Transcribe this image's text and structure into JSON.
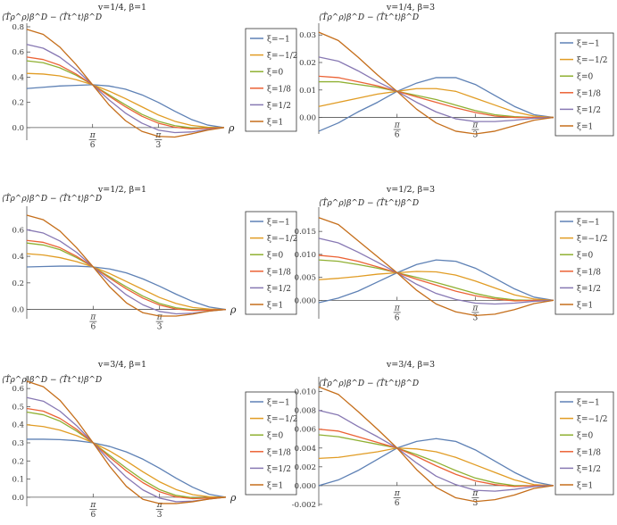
{
  "figure": {
    "ylabel_text": "⟨T̂ρ^ρ⟩β^D − ⟨T̂t^t⟩β^D",
    "xlabel": "ρ",
    "xtick_labels": [
      {
        "num": "π",
        "den": "6",
        "value": 0.5236
      },
      {
        "num": "π",
        "den": "3",
        "value": 1.0472
      }
    ],
    "legend_labels": [
      "ξ=−1",
      "ξ=−1/2",
      "ξ=0",
      "ξ=1/8",
      "ξ=1/2",
      "ξ=1"
    ],
    "colors": [
      "#5e81b5",
      "#e19c24",
      "#8fb032",
      "#eb6235",
      "#8778b3",
      "#c56e1a"
    ]
  },
  "chart_data": [
    {
      "type": "line",
      "title": "v=1/4,  β=1",
      "xlabel": "ρ",
      "xlim": [
        0,
        1.5708
      ],
      "ylim": [
        -0.1,
        0.8
      ],
      "yticks": [
        "0.0",
        "0.2",
        "0.4",
        "0.6",
        "0.8"
      ],
      "ytick_values": [
        0,
        0.2,
        0.4,
        0.6,
        0.8
      ],
      "x": [
        0,
        0.1309,
        0.2618,
        0.3927,
        0.5236,
        0.6545,
        0.7854,
        0.9163,
        1.0472,
        1.1781,
        1.309,
        1.4399,
        1.5708
      ],
      "series": [
        {
          "name": "ξ=−1",
          "values": [
            0.31,
            0.32,
            0.33,
            0.335,
            0.34,
            0.33,
            0.305,
            0.26,
            0.2,
            0.13,
            0.065,
            0.02,
            0
          ]
        },
        {
          "name": "ξ=−1/2",
          "values": [
            0.43,
            0.425,
            0.41,
            0.38,
            0.34,
            0.29,
            0.23,
            0.165,
            0.1,
            0.05,
            0.018,
            0.003,
            0
          ]
        },
        {
          "name": "ξ=0",
          "values": [
            0.53,
            0.515,
            0.475,
            0.415,
            0.34,
            0.26,
            0.18,
            0.105,
            0.05,
            0.015,
            -0.002,
            -0.003,
            0
          ]
        },
        {
          "name": "ξ=1/8",
          "values": [
            0.56,
            0.54,
            0.495,
            0.425,
            0.34,
            0.25,
            0.165,
            0.09,
            0.035,
            0.003,
            -0.01,
            -0.006,
            0
          ]
        },
        {
          "name": "ξ=1/2",
          "values": [
            0.66,
            0.63,
            0.56,
            0.46,
            0.34,
            0.22,
            0.115,
            0.035,
            -0.02,
            -0.04,
            -0.035,
            -0.015,
            0
          ]
        },
        {
          "name": "ξ=1",
          "values": [
            0.78,
            0.74,
            0.64,
            0.5,
            0.34,
            0.18,
            0.055,
            -0.03,
            -0.07,
            -0.075,
            -0.05,
            -0.02,
            0
          ]
        }
      ]
    },
    {
      "type": "line",
      "title": "v=1/4,  β=3",
      "xlabel": "ρ",
      "xlim": [
        0,
        1.5708
      ],
      "ylim": [
        -0.006,
        0.033
      ],
      "yticks": [
        "0.00",
        "0.01",
        "0.02",
        "0.03"
      ],
      "ytick_values": [
        0,
        0.01,
        0.02,
        0.03
      ],
      "x": [
        0,
        0.1309,
        0.2618,
        0.3927,
        0.5236,
        0.6545,
        0.7854,
        0.9163,
        1.0472,
        1.1781,
        1.309,
        1.4399,
        1.5708
      ],
      "series": [
        {
          "name": "ξ=−1",
          "values": [
            -0.005,
            -0.002,
            0.002,
            0.0055,
            0.0095,
            0.0125,
            0.0145,
            0.0145,
            0.012,
            0.008,
            0.004,
            0.001,
            0
          ]
        },
        {
          "name": "ξ=−1/2",
          "values": [
            0.004,
            0.0055,
            0.007,
            0.0085,
            0.0095,
            0.0105,
            0.0105,
            0.0095,
            0.007,
            0.0045,
            0.002,
            0.0005,
            0
          ]
        },
        {
          "name": "ξ=0",
          "values": [
            0.013,
            0.013,
            0.012,
            0.011,
            0.0095,
            0.008,
            0.0065,
            0.0045,
            0.0025,
            0.001,
            0.0003,
            0,
            0
          ]
        },
        {
          "name": "ξ=1/8",
          "values": [
            0.015,
            0.0145,
            0.013,
            0.0115,
            0.0095,
            0.0075,
            0.0055,
            0.0035,
            0.0018,
            0.0005,
            0,
            0,
            0
          ]
        },
        {
          "name": "ξ=1/2",
          "values": [
            0.022,
            0.0205,
            0.017,
            0.013,
            0.0095,
            0.0055,
            0.002,
            -0.0005,
            -0.0015,
            -0.0015,
            -0.001,
            -0.0003,
            0
          ]
        },
        {
          "name": "ξ=1",
          "values": [
            0.031,
            0.028,
            0.022,
            0.0155,
            0.0095,
            0.003,
            -0.002,
            -0.005,
            -0.006,
            -0.005,
            -0.003,
            -0.001,
            0
          ]
        }
      ]
    },
    {
      "type": "line",
      "title": "v=1/2,  β=1",
      "xlabel": "ρ",
      "xlim": [
        0,
        1.5708
      ],
      "ylim": [
        -0.07,
        0.75
      ],
      "yticks": [
        "0.0",
        "0.2",
        "0.4",
        "0.6"
      ],
      "ytick_values": [
        0,
        0.2,
        0.4,
        0.6
      ],
      "x": [
        0,
        0.1309,
        0.2618,
        0.3927,
        0.5236,
        0.6545,
        0.7854,
        0.9163,
        1.0472,
        1.1781,
        1.309,
        1.4399,
        1.5708
      ],
      "series": [
        {
          "name": "ξ=−1",
          "values": [
            0.32,
            0.323,
            0.326,
            0.326,
            0.32,
            0.305,
            0.275,
            0.23,
            0.175,
            0.115,
            0.06,
            0.018,
            0
          ]
        },
        {
          "name": "ξ=−1/2",
          "values": [
            0.42,
            0.41,
            0.39,
            0.36,
            0.32,
            0.27,
            0.21,
            0.15,
            0.09,
            0.045,
            0.015,
            0.003,
            0
          ]
        },
        {
          "name": "ξ=0",
          "values": [
            0.5,
            0.485,
            0.45,
            0.39,
            0.32,
            0.245,
            0.17,
            0.1,
            0.045,
            0.012,
            -0.002,
            -0.003,
            0
          ]
        },
        {
          "name": "ξ=1/8",
          "values": [
            0.52,
            0.505,
            0.465,
            0.4,
            0.32,
            0.235,
            0.155,
            0.085,
            0.033,
            0.003,
            -0.008,
            -0.005,
            0
          ]
        },
        {
          "name": "ξ=1/2",
          "values": [
            0.6,
            0.575,
            0.515,
            0.43,
            0.32,
            0.21,
            0.11,
            0.035,
            -0.015,
            -0.033,
            -0.028,
            -0.012,
            0
          ]
        },
        {
          "name": "ξ=1",
          "values": [
            0.71,
            0.675,
            0.59,
            0.465,
            0.32,
            0.17,
            0.05,
            -0.025,
            -0.05,
            -0.05,
            -0.035,
            -0.012,
            0
          ]
        }
      ]
    },
    {
      "type": "line",
      "title": "v=1/2,  β=3",
      "xlabel": "ρ",
      "xlim": [
        0,
        1.5708
      ],
      "ylim": [
        -0.004,
        0.0195
      ],
      "yticks": [
        "0.000",
        "0.005",
        "0.010",
        "0.015"
      ],
      "ytick_values": [
        0,
        0.005,
        0.01,
        0.015
      ],
      "x": [
        0,
        0.1309,
        0.2618,
        0.3927,
        0.5236,
        0.6545,
        0.7854,
        0.9163,
        1.0472,
        1.1781,
        1.309,
        1.4399,
        1.5708
      ],
      "series": [
        {
          "name": "ξ=−1",
          "values": [
            -0.0005,
            0.0005,
            0.002,
            0.004,
            0.006,
            0.0078,
            0.0088,
            0.0085,
            0.007,
            0.0048,
            0.0025,
            0.0007,
            0
          ]
        },
        {
          "name": "ξ=−1/2",
          "values": [
            0.0045,
            0.0048,
            0.0052,
            0.0057,
            0.006,
            0.0063,
            0.0062,
            0.0055,
            0.0042,
            0.0027,
            0.0012,
            0.0003,
            0
          ]
        },
        {
          "name": "ξ=0",
          "values": [
            0.0088,
            0.0085,
            0.0078,
            0.007,
            0.006,
            0.005,
            0.0039,
            0.0027,
            0.0015,
            0.0006,
            0.0001,
            0,
            0
          ]
        },
        {
          "name": "ξ=1/8",
          "values": [
            0.0098,
            0.0094,
            0.0085,
            0.0073,
            0.006,
            0.0046,
            0.0033,
            0.002,
            0.001,
            0.0003,
            -0.0001,
            0,
            0
          ]
        },
        {
          "name": "ξ=1/2",
          "values": [
            0.0135,
            0.0125,
            0.0105,
            0.0083,
            0.006,
            0.0035,
            0.0015,
            0.0002,
            -0.0006,
            -0.0008,
            -0.0006,
            -0.0002,
            0
          ]
        },
        {
          "name": "ξ=1",
          "values": [
            0.018,
            0.0165,
            0.013,
            0.0095,
            0.006,
            0.0022,
            -0.0008,
            -0.0025,
            -0.0033,
            -0.003,
            -0.002,
            -0.0007,
            0
          ]
        }
      ]
    },
    {
      "type": "line",
      "title": "v=3/4,  β=1",
      "xlabel": "ρ",
      "xlim": [
        0,
        1.5708
      ],
      "ylim": [
        -0.05,
        0.65
      ],
      "yticks": [
        "0.0",
        "0.1",
        "0.2",
        "0.3",
        "0.4",
        "0.5",
        "0.6"
      ],
      "ytick_values": [
        0,
        0.1,
        0.2,
        0.3,
        0.4,
        0.5,
        0.6
      ],
      "x": [
        0,
        0.1309,
        0.2618,
        0.3927,
        0.5236,
        0.6545,
        0.7854,
        0.9163,
        1.0472,
        1.1781,
        1.309,
        1.4399,
        1.5708
      ],
      "series": [
        {
          "name": "ξ=−1",
          "values": [
            0.32,
            0.32,
            0.318,
            0.312,
            0.3,
            0.28,
            0.25,
            0.21,
            0.16,
            0.105,
            0.055,
            0.016,
            0
          ]
        },
        {
          "name": "ξ=−1/2",
          "values": [
            0.4,
            0.39,
            0.37,
            0.34,
            0.3,
            0.255,
            0.2,
            0.14,
            0.085,
            0.042,
            0.014,
            0.002,
            0
          ]
        },
        {
          "name": "ξ=0",
          "values": [
            0.47,
            0.455,
            0.42,
            0.365,
            0.3,
            0.23,
            0.16,
            0.095,
            0.042,
            0.01,
            -0.003,
            -0.003,
            0
          ]
        },
        {
          "name": "ξ=1/8",
          "values": [
            0.49,
            0.475,
            0.435,
            0.375,
            0.3,
            0.22,
            0.145,
            0.08,
            0.03,
            0.002,
            -0.008,
            -0.005,
            0
          ]
        },
        {
          "name": "ξ=1/2",
          "values": [
            0.55,
            0.53,
            0.475,
            0.395,
            0.3,
            0.2,
            0.11,
            0.04,
            -0.005,
            -0.025,
            -0.022,
            -0.01,
            0
          ]
        },
        {
          "name": "ξ=1",
          "values": [
            0.64,
            0.61,
            0.535,
            0.425,
            0.3,
            0.17,
            0.06,
            -0.012,
            -0.035,
            -0.035,
            -0.025,
            -0.01,
            0
          ]
        }
      ]
    },
    {
      "type": "line",
      "title": "v=3/4,  β=3",
      "xlabel": "ρ",
      "xlim": [
        0,
        1.5708
      ],
      "ylim": [
        -0.0022,
        0.0112
      ],
      "yticks": [
        "-0.002",
        "0.000",
        "0.002",
        "0.004",
        "0.006",
        "0.008",
        "0.010"
      ],
      "ytick_values": [
        -0.002,
        0,
        0.002,
        0.004,
        0.006,
        0.008,
        0.01
      ],
      "x": [
        0,
        0.1309,
        0.2618,
        0.3927,
        0.5236,
        0.6545,
        0.7854,
        0.9163,
        1.0472,
        1.1781,
        1.309,
        1.4399,
        1.5708
      ],
      "series": [
        {
          "name": "ξ=−1",
          "values": [
            0,
            0.0006,
            0.0016,
            0.0028,
            0.004,
            0.0047,
            0.005,
            0.0047,
            0.0038,
            0.0026,
            0.0014,
            0.0004,
            0
          ]
        },
        {
          "name": "ξ=−1/2",
          "values": [
            0.0029,
            0.003,
            0.0033,
            0.0036,
            0.004,
            0.0039,
            0.0036,
            0.003,
            0.0022,
            0.0014,
            0.0006,
            0.0001,
            0
          ]
        },
        {
          "name": "ξ=0",
          "values": [
            0.0054,
            0.0052,
            0.0048,
            0.0044,
            0.004,
            0.0033,
            0.0025,
            0.0016,
            0.0008,
            0.0003,
            0,
            0,
            0
          ]
        },
        {
          "name": "ξ=1/8",
          "values": [
            0.006,
            0.0058,
            0.0052,
            0.0046,
            0.004,
            0.0031,
            0.0021,
            0.0012,
            0.0005,
            0.0001,
            -0.0001,
            0,
            0
          ]
        },
        {
          "name": "ξ=1/2",
          "values": [
            0.008,
            0.0075,
            0.0063,
            0.0052,
            0.004,
            0.0024,
            0.001,
            0.0001,
            -0.0005,
            -0.0006,
            -0.0004,
            -0.0001,
            0
          ]
        },
        {
          "name": "ξ=1",
          "values": [
            0.0105,
            0.0097,
            0.0079,
            0.006,
            0.004,
            0.0017,
            -0.0002,
            -0.0013,
            -0.0017,
            -0.0015,
            -0.001,
            -0.0003,
            0
          ]
        }
      ]
    }
  ]
}
